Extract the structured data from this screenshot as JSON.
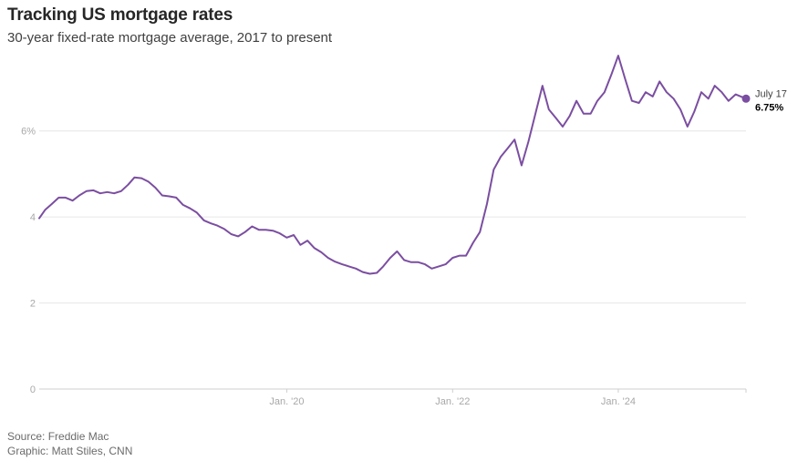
{
  "title": "Tracking US mortgage rates",
  "subtitle": "30-year fixed-rate mortgage average, 2017 to present",
  "footer": {
    "source": "Source: Freddie Mac",
    "graphic": "Graphic: Matt Stiles, CNN"
  },
  "colors": {
    "line": "#7b4ea1",
    "grid": "#e6e6e6",
    "tick_text": "#a8a8a8"
  },
  "chart_data": {
    "type": "line",
    "title": "Tracking US mortgage rates",
    "subtitle": "30-year fixed-rate mortgage average, 2017 to present",
    "xlabel": "",
    "ylabel": "",
    "xlim": [
      "2017-01-05",
      "2025-07-17"
    ],
    "ylim": [
      0,
      7.9
    ],
    "grid": true,
    "y_ticks": [
      {
        "value": 0,
        "label": "0"
      },
      {
        "value": 2,
        "label": "2"
      },
      {
        "value": 4,
        "label": "4"
      },
      {
        "value": 6,
        "label": "6%"
      }
    ],
    "x_ticks": [
      {
        "value": "2020-01-01",
        "label": "Jan. '20"
      },
      {
        "value": "2022-01-01",
        "label": "Jan. '22"
      },
      {
        "value": "2024-01-01",
        "label": "Jan. '24"
      }
    ],
    "end_label": {
      "date_label": "July 17",
      "value_label": "6.75%"
    },
    "series": [
      {
        "x": [
          "2017-01-05",
          "2017-02-01",
          "2017-03-01",
          "2017-04-01",
          "2017-05-01",
          "2017-06-01",
          "2017-07-01",
          "2017-08-01",
          "2017-09-01",
          "2017-10-01",
          "2017-11-01",
          "2017-12-01",
          "2018-01-01",
          "2018-02-01",
          "2018-03-01",
          "2018-04-01",
          "2018-05-01",
          "2018-06-01",
          "2018-07-01",
          "2018-08-01",
          "2018-09-01",
          "2018-10-01",
          "2018-11-01",
          "2018-12-01",
          "2019-01-01",
          "2019-02-01",
          "2019-03-01",
          "2019-04-01",
          "2019-05-01",
          "2019-06-01",
          "2019-07-01",
          "2019-08-01",
          "2019-09-01",
          "2019-10-01",
          "2019-11-01",
          "2019-12-01",
          "2020-01-01",
          "2020-02-01",
          "2020-03-01",
          "2020-04-01",
          "2020-05-01",
          "2020-06-01",
          "2020-07-01",
          "2020-08-01",
          "2020-09-01",
          "2020-10-01",
          "2020-11-01",
          "2020-12-01",
          "2021-01-01",
          "2021-02-01",
          "2021-03-01",
          "2021-04-01",
          "2021-05-01",
          "2021-06-01",
          "2021-07-01",
          "2021-08-01",
          "2021-09-01",
          "2021-10-01",
          "2021-11-01",
          "2021-12-01",
          "2022-01-01",
          "2022-02-01",
          "2022-03-01",
          "2022-04-01",
          "2022-05-01",
          "2022-06-01",
          "2022-07-01",
          "2022-08-01",
          "2022-09-01",
          "2022-10-01",
          "2022-11-01",
          "2022-12-01",
          "2023-01-01",
          "2023-02-01",
          "2023-03-01",
          "2023-04-01",
          "2023-05-01",
          "2023-06-01",
          "2023-07-01",
          "2023-08-01",
          "2023-09-01",
          "2023-10-01",
          "2023-11-01",
          "2023-12-01",
          "2024-01-01",
          "2024-02-01",
          "2024-03-01",
          "2024-04-01",
          "2024-05-01",
          "2024-06-01",
          "2024-07-01",
          "2024-08-01",
          "2024-09-01",
          "2024-10-01",
          "2024-11-01",
          "2024-12-01",
          "2025-01-01",
          "2025-02-01",
          "2025-03-01",
          "2025-04-01",
          "2025-05-01",
          "2025-06-01",
          "2025-07-17"
        ],
        "values": [
          3.97,
          4.17,
          4.3,
          4.45,
          4.45,
          4.38,
          4.5,
          4.6,
          4.62,
          4.55,
          4.58,
          4.55,
          4.6,
          4.75,
          4.92,
          4.9,
          4.82,
          4.68,
          4.5,
          4.48,
          4.45,
          4.28,
          4.2,
          4.1,
          3.92,
          3.85,
          3.8,
          3.72,
          3.6,
          3.55,
          3.65,
          3.78,
          3.7,
          3.7,
          3.68,
          3.62,
          3.52,
          3.58,
          3.35,
          3.45,
          3.28,
          3.18,
          3.05,
          2.96,
          2.9,
          2.85,
          2.8,
          2.72,
          2.68,
          2.7,
          2.85,
          3.05,
          3.2,
          3.0,
          2.95,
          2.95,
          2.9,
          2.8,
          2.85,
          2.9,
          3.05,
          3.1,
          3.1,
          3.4,
          3.65,
          4.3,
          5.1,
          5.4,
          5.6,
          5.8,
          5.2,
          5.75,
          6.4,
          7.05,
          6.5,
          6.3,
          6.1,
          6.35,
          6.7,
          6.4,
          6.4,
          6.7,
          6.9,
          7.3,
          7.75,
          7.2,
          6.7,
          6.65,
          6.9,
          6.8,
          7.15,
          6.9,
          6.75,
          6.5,
          6.1,
          6.45,
          6.9,
          6.75,
          7.05,
          6.9,
          6.7,
          6.85,
          6.75
        ]
      }
    ]
  }
}
